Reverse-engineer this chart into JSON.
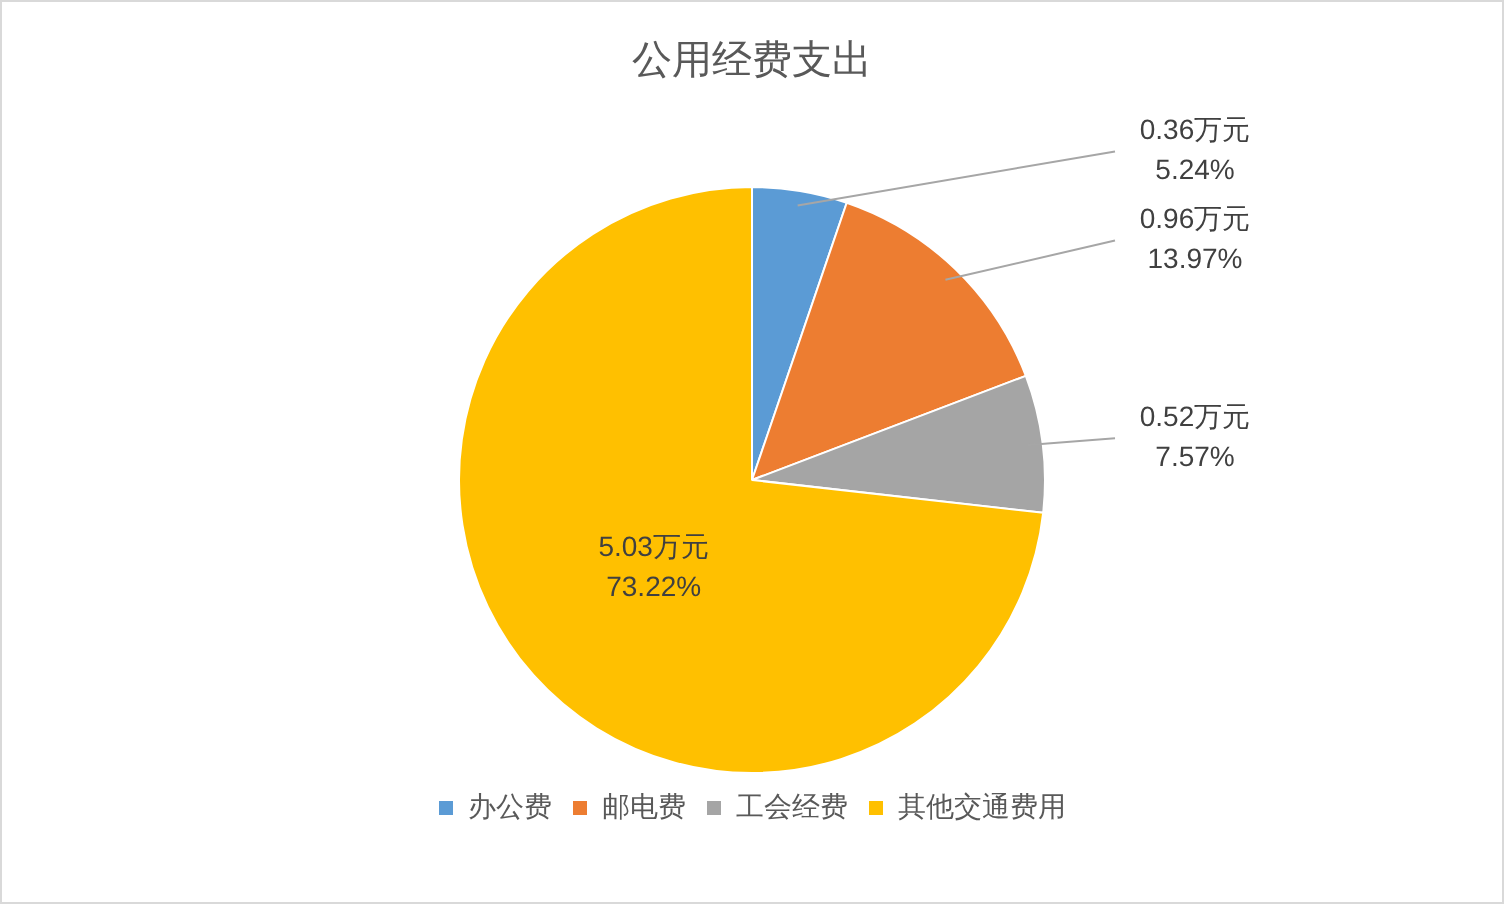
{
  "chart_data": {
    "type": "pie",
    "title": "公用经费支出",
    "categories": [
      "办公费",
      "邮电费",
      "工会经费",
      "其他交通费用"
    ],
    "values": [
      0.36,
      0.96,
      0.52,
      5.03
    ],
    "colors": [
      "#5b9bd5",
      "#ed7d31",
      "#a5a5a5",
      "#ffc000"
    ],
    "value_labels": [
      "0.36万元\n5.24%",
      "0.96万元\n13.97%",
      "0.52万元\n7.57%",
      "5.03万元\n73.22%"
    ],
    "legend": "bottom"
  }
}
